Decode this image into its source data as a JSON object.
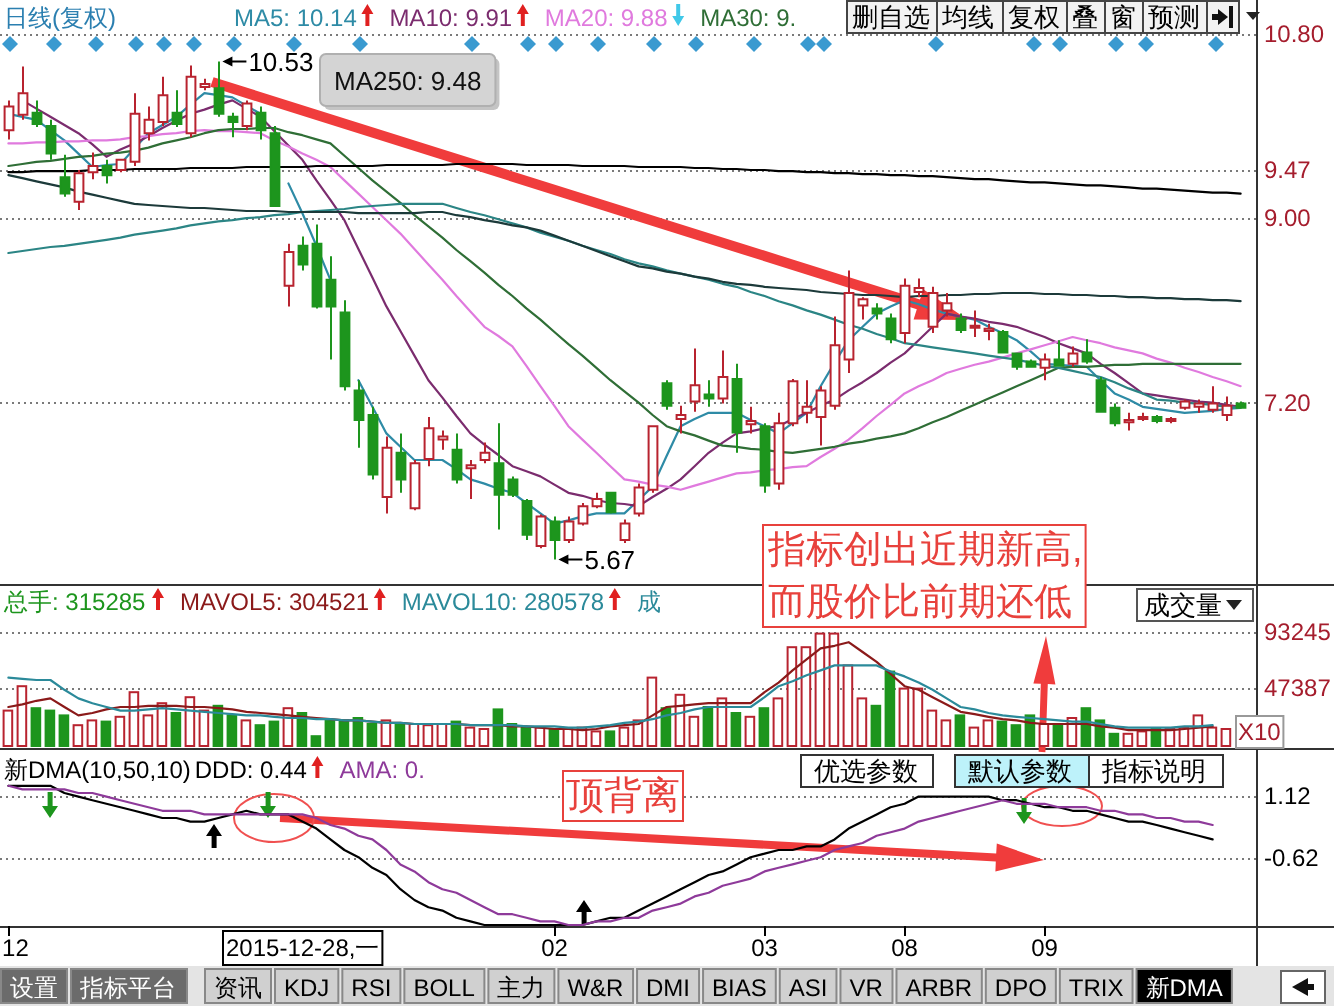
{
  "chart_data": [
    {
      "type": "candlestick",
      "title": "日线(复权)",
      "legend": "top left",
      "tick_labels": "y",
      "grid": "y",
      "categories": [
        null,
        null,
        null,
        null,
        null,
        null,
        null,
        null,
        null,
        null,
        null,
        null,
        null,
        null,
        null,
        null,
        null,
        null,
        null,
        null,
        null,
        null,
        null,
        null,
        null,
        null,
        null,
        null,
        null,
        null,
        null,
        null,
        null,
        null,
        null,
        null,
        null,
        null,
        null,
        null,
        null,
        null,
        null,
        null,
        null,
        null,
        null,
        null,
        null,
        null,
        null,
        null,
        null,
        null,
        null,
        null,
        null,
        null,
        null,
        null,
        null,
        null,
        null,
        null,
        null,
        null,
        null,
        null,
        null,
        null,
        null,
        null,
        null,
        null,
        null,
        null,
        null,
        null,
        null,
        null,
        null,
        null,
        null,
        null,
        null,
        null,
        null,
        null,
        null
      ],
      "ohlc": [
        [
          9.86,
          10.15,
          9.77,
          10.09
        ],
        [
          10.01,
          10.48,
          9.96,
          10.22
        ],
        [
          10.03,
          10.15,
          9.89,
          9.92
        ],
        [
          9.9,
          9.96,
          9.57,
          9.63
        ],
        [
          9.4,
          9.62,
          9.21,
          9.24
        ],
        [
          9.16,
          9.47,
          9.08,
          9.44
        ],
        [
          9.45,
          9.64,
          9.38,
          9.51
        ],
        [
          9.51,
          9.57,
          9.34,
          9.42
        ],
        [
          9.47,
          9.58,
          9.45,
          9.57
        ],
        [
          9.55,
          10.22,
          9.51,
          10.02
        ],
        [
          9.83,
          10.09,
          9.76,
          9.96
        ],
        [
          9.94,
          10.38,
          9.9,
          10.2
        ],
        [
          10.03,
          10.25,
          9.89,
          9.92
        ],
        [
          9.83,
          10.49,
          9.79,
          10.38
        ],
        [
          10.28,
          10.36,
          10.25,
          10.31
        ],
        [
          10.27,
          10.53,
          9.99,
          10.02
        ],
        [
          9.99,
          10.03,
          9.79,
          9.94
        ],
        [
          9.9,
          10.15,
          9.86,
          10.12
        ],
        [
          10.03,
          10.09,
          9.77,
          9.86
        ],
        [
          9.83,
          9.9,
          9.11,
          9.12
        ],
        [
          8.34,
          8.75,
          8.14,
          8.67
        ],
        [
          8.73,
          8.82,
          8.49,
          8.55
        ],
        [
          8.75,
          8.94,
          8.12,
          8.14
        ],
        [
          8.4,
          8.63,
          7.62,
          8.14
        ],
        [
          8.08,
          8.2,
          7.32,
          7.36
        ],
        [
          7.32,
          7.42,
          6.76,
          7.03
        ],
        [
          7.08,
          7.16,
          6.45,
          6.5
        ],
        [
          6.28,
          6.87,
          6.12,
          6.76
        ],
        [
          6.71,
          6.9,
          6.32,
          6.45
        ],
        [
          6.17,
          6.64,
          6.15,
          6.61
        ],
        [
          6.65,
          7.06,
          6.58,
          6.95
        ],
        [
          6.84,
          6.93,
          6.74,
          6.87
        ],
        [
          6.74,
          6.9,
          6.41,
          6.45
        ],
        [
          6.56,
          6.64,
          6.26,
          6.59
        ],
        [
          6.64,
          6.81,
          6.61,
          6.71
        ],
        [
          6.61,
          7.0,
          5.96,
          6.3
        ],
        [
          6.45,
          6.48,
          6.28,
          6.3
        ],
        [
          6.24,
          6.26,
          5.86,
          5.91
        ],
        [
          5.8,
          6.11,
          5.78,
          6.09
        ],
        [
          6.04,
          6.09,
          5.67,
          5.86
        ],
        [
          5.86,
          6.09,
          5.83,
          6.04
        ],
        [
          6.02,
          6.22,
          6.0,
          6.19
        ],
        [
          6.19,
          6.32,
          6.17,
          6.26
        ],
        [
          6.32,
          6.33,
          6.12,
          6.13
        ],
        [
          5.86,
          6.06,
          5.83,
          6.02
        ],
        [
          6.12,
          6.41,
          6.09,
          6.37
        ],
        [
          6.35,
          6.98,
          6.32,
          6.97
        ],
        [
          7.39,
          7.42,
          7.13,
          7.17
        ],
        [
          7.04,
          7.17,
          6.9,
          7.08
        ],
        [
          7.21,
          7.73,
          7.11,
          7.37
        ],
        [
          7.28,
          7.42,
          7.16,
          7.24
        ],
        [
          7.24,
          7.71,
          7.19,
          7.45
        ],
        [
          7.43,
          7.58,
          6.71,
          6.91
        ],
        [
          6.99,
          7.16,
          6.9,
          7.02
        ],
        [
          6.97,
          7.0,
          6.32,
          6.39
        ],
        [
          6.41,
          7.1,
          6.35,
          7.0
        ],
        [
          7.0,
          7.43,
          6.97,
          7.41
        ],
        [
          7.1,
          7.42,
          7.0,
          7.16
        ],
        [
          7.06,
          7.36,
          6.78,
          7.32
        ],
        [
          7.17,
          8.04,
          7.13,
          7.76
        ],
        [
          7.62,
          8.49,
          7.49,
          8.27
        ],
        [
          8.15,
          8.23,
          8.01,
          8.21
        ],
        [
          8.12,
          8.17,
          8.01,
          8.07
        ],
        [
          8.02,
          8.07,
          7.78,
          7.82
        ],
        [
          7.88,
          8.41,
          7.78,
          8.34
        ],
        [
          8.28,
          8.41,
          8.23,
          8.32
        ],
        [
          7.94,
          8.33,
          7.88,
          8.27
        ],
        [
          8.1,
          8.27,
          8.04,
          8.17
        ],
        [
          8.02,
          8.07,
          7.88,
          7.91
        ],
        [
          7.93,
          8.1,
          7.84,
          7.95
        ],
        [
          7.9,
          7.97,
          7.81,
          7.92
        ],
        [
          7.89,
          7.91,
          7.68,
          7.69
        ],
        [
          7.68,
          7.69,
          7.52,
          7.55
        ],
        [
          7.6,
          7.62,
          7.54,
          7.55
        ],
        [
          7.54,
          7.68,
          7.42,
          7.62
        ],
        [
          7.62,
          7.81,
          7.55,
          7.56
        ],
        [
          7.58,
          7.75,
          7.55,
          7.68
        ],
        [
          7.69,
          7.82,
          7.58,
          7.6
        ],
        [
          7.42,
          7.45,
          7.1,
          7.11
        ],
        [
          7.15,
          7.19,
          6.97,
          7.0
        ],
        [
          7.01,
          7.1,
          6.93,
          7.03
        ],
        [
          7.04,
          7.1,
          7.02,
          7.06
        ],
        [
          7.06,
          7.08,
          7.0,
          7.02
        ],
        [
          7.02,
          7.06,
          7.0,
          7.04
        ],
        [
          7.15,
          7.23,
          7.13,
          7.21
        ],
        [
          7.16,
          7.23,
          7.1,
          7.19
        ],
        [
          7.13,
          7.36,
          7.1,
          7.19
        ],
        [
          7.08,
          7.26,
          7.02,
          7.17
        ],
        [
          7.19,
          7.21,
          7.14,
          7.15
        ]
      ],
      "colors": [
        "#b8232f",
        "#b8232f",
        "#1d951d",
        "#1d951d",
        "#1d951d",
        "#b8232f",
        "#b8232f",
        "#1d951d",
        "#b8232f",
        "#b8232f",
        "#b8232f",
        "#b8232f",
        "#1d951d",
        "#b8232f",
        "#b8232f",
        "#1d951d",
        "#1d951d",
        "#b8232f",
        "#1d951d",
        "#1d951d",
        "#b8232f",
        "#1d951d",
        "#1d951d",
        "#1d951d",
        "#1d951d",
        "#1d951d",
        "#1d951d",
        "#b8232f",
        "#1d951d",
        "#b8232f",
        "#b8232f",
        "#b8232f",
        "#1d951d",
        "#b8232f",
        "#b8232f",
        "#1d951d",
        "#1d951d",
        "#1d951d",
        "#b8232f",
        "#1d951d",
        "#b8232f",
        "#b8232f",
        "#b8232f",
        "#1d951d",
        "#b8232f",
        "#b8232f",
        "#b8232f",
        "#1d951d",
        "#b8232f",
        "#b8232f",
        "#1d951d",
        "#b8232f",
        "#1d951d",
        "#b8232f",
        "#1d951d",
        "#b8232f",
        "#b8232f",
        "#b8232f",
        "#b8232f",
        "#b8232f",
        "#b8232f",
        "#b8232f",
        "#1d951d",
        "#1d951d",
        "#b8232f",
        "#b8232f",
        "#b8232f",
        "#b8232f",
        "#1d951d",
        "#b8232f",
        "#b8232f",
        "#1d951d",
        "#1d951d",
        "#1d951d",
        "#b8232f",
        "#1d951d",
        "#b8232f",
        "#1d951d",
        "#1d951d",
        "#1d951d",
        "#b8232f",
        "#b8232f",
        "#1d951d",
        "#b8232f",
        "#b8232f",
        "#b8232f",
        "#b8232f",
        "#b8232f",
        "#1d951d"
      ],
      "series": [
        {
          "name": "MA5: 10.14",
          "type": "line",
          "color": "#2e8ba6",
          "values": [
            10.02,
            9.99,
            9.96,
            9.86,
            9.76,
            9.63,
            9.5,
            9.52,
            9.53,
            9.68,
            9.83,
            9.91,
            9.99,
            10.11,
            10.22,
            10.2,
            10.18,
            10.1,
            10.02,
            null,
            9.34,
            9.05,
            8.73,
            8.4,
            null,
            7.42,
            7.16,
            6.9,
            6.77,
            6.64,
            6.64,
            6.64,
            6.55,
            6.45,
            6.41,
            6.36,
            6.32,
            6.22,
            6.12,
            6.02,
            6.05,
            6.09,
            6.12,
            6.12,
            6.12,
            6.25,
            6.38,
            6.68,
            6.97,
            7.04,
            7.1,
            7.1,
            7.1,
            7.03,
            6.97,
            6.9,
            7.0,
            7.1,
            7.36,
            7.59,
            7.81,
            7.94,
            8.07,
            8.14,
            8.2,
            8.16,
            8.11,
            8.07,
            8.04,
            8.01,
            7.94,
            7.88,
            7.81,
            7.7,
            7.58,
            7.57,
            7.56,
            7.55,
            7.42,
            7.29,
            7.23,
            7.16,
            7.14,
            7.12,
            7.1,
            7.11,
            7.12,
            7.14,
            7.15
          ]
        },
        {
          "name": "MA10: 9.91",
          "type": "line",
          "color": "#7b2c6e",
          "values": [
            null,
            10.15,
            10.07,
            9.99,
            9.91,
            9.83,
            9.72,
            9.6,
            9.67,
            9.73,
            9.8,
            9.88,
            9.95,
            10.02,
            10.06,
            10.11,
            10.15,
            10.07,
            9.99,
            9.85,
            9.71,
            9.57,
            9.37,
            9.18,
            8.98,
            8.7,
            8.42,
            8.14,
            7.9,
            7.66,
            7.42,
            7.25,
            7.07,
            6.9,
            6.79,
            6.69,
            6.58,
            6.53,
            6.48,
            6.4,
            6.32,
            6.29,
            6.25,
            6.22,
            6.21,
            6.19,
            6.28,
            6.36,
            6.45,
            6.58,
            6.71,
            6.81,
            6.9,
            6.92,
            6.95,
            6.97,
            7.04,
            7.1,
            7.17,
            7.23,
            7.32,
            7.4,
            7.49,
            7.59,
            7.68,
            7.81,
            7.94,
            8.07,
            8.04,
            8.02,
            7.99,
            7.97,
            7.94,
            7.89,
            7.84,
            7.78,
            7.73,
            7.68,
            7.58,
            7.49,
            7.39,
            7.29,
            7.27,
            7.25,
            7.23,
            7.21,
            7.2,
            7.18,
            7.16
          ]
        },
        {
          "name": "MA20: 9.88",
          "type": "line",
          "color": "#e07ade",
          "values": [
            9.73,
            9.73,
            9.74,
            9.74,
            9.75,
            9.75,
            9.76,
            9.76,
            9.77,
            9.79,
            9.8,
            9.82,
            9.83,
            9.85,
            9.86,
            9.85,
            9.85,
            9.84,
            9.83,
            9.76,
            9.7,
            9.63,
            9.57,
            9.5,
            9.37,
            9.24,
            9.11,
            8.98,
            8.85,
            8.7,
            8.55,
            8.4,
            8.24,
            8.09,
            7.94,
            7.85,
            7.75,
            7.56,
            7.36,
            7.17,
            6.97,
            6.84,
            6.71,
            6.58,
            6.45,
            6.43,
            6.4,
            6.38,
            6.35,
            6.39,
            6.43,
            6.47,
            6.51,
            6.52,
            6.54,
            6.55,
            6.57,
            6.58,
            6.67,
            6.75,
            6.84,
            6.95,
            7.07,
            7.18,
            7.29,
            7.36,
            7.42,
            7.49,
            7.53,
            7.57,
            7.6,
            7.64,
            7.68,
            7.72,
            7.76,
            7.8,
            7.84,
            7.81,
            7.78,
            7.74,
            7.71,
            7.68,
            7.63,
            7.59,
            7.54,
            7.5,
            7.45,
            7.41,
            7.36
          ]
        },
        {
          "name": "MA30: 9.",
          "type": "line",
          "color": "#2f6e36",
          "values": [
            9.51,
            9.53,
            9.55,
            9.56,
            9.58,
            9.6,
            9.61,
            9.63,
            9.64,
            9.66,
            9.69,
            9.73,
            9.76,
            9.79,
            9.83,
            9.86,
            9.87,
            9.87,
            9.88,
            9.88,
            9.84,
            9.81,
            9.77,
            9.73,
            9.61,
            9.49,
            9.37,
            9.26,
            9.15,
            9.03,
            8.92,
            8.81,
            8.69,
            8.58,
            8.47,
            8.35,
            8.24,
            8.12,
            8.01,
            7.89,
            7.77,
            7.66,
            7.54,
            7.42,
            7.31,
            7.2,
            7.08,
            6.97,
            6.92,
            6.88,
            6.83,
            6.78,
            6.77,
            6.75,
            6.74,
            6.72,
            6.71,
            6.73,
            6.75,
            6.77,
            6.8,
            6.82,
            6.85,
            6.87,
            6.9,
            6.95,
            7.01,
            7.06,
            7.12,
            7.18,
            7.24,
            7.3,
            7.36,
            7.42,
            7.48,
            7.54,
            7.55,
            7.55,
            7.56,
            7.57,
            7.57,
            7.58,
            7.58,
            7.58,
            7.58,
            7.58,
            7.58,
            7.58,
            7.58
          ]
        },
        {
          "type": "line",
          "color": "#2b8585",
          "values": [
            8.66,
            8.68,
            8.7,
            8.72,
            8.73,
            8.75,
            8.77,
            8.79,
            8.81,
            8.84,
            8.86,
            8.88,
            8.9,
            8.93,
            8.95,
            8.97,
            8.98,
            9.0,
            9.01,
            9.03,
            9.04,
            9.06,
            9.07,
            9.08,
            9.09,
            9.11,
            9.12,
            9.13,
            9.14,
            9.14,
            9.14,
            9.14,
            9.1,
            9.06,
            9.03,
            8.99,
            8.95,
            8.91,
            8.86,
            8.82,
            8.78,
            8.73,
            8.69,
            8.65,
            8.6,
            8.56,
            8.53,
            8.49,
            8.46,
            8.43,
            8.4,
            8.36,
            8.33,
            8.28,
            8.24,
            8.19,
            8.15,
            8.1,
            8.06,
            8.01,
            7.96,
            7.92,
            7.87,
            7.83,
            7.78,
            7.76,
            7.74,
            7.72,
            7.7,
            7.68,
            7.66,
            7.64,
            7.62,
            7.59,
            7.56,
            7.54,
            7.51,
            7.48,
            7.45,
            7.4,
            7.34,
            7.29,
            7.23,
            7.22,
            7.2,
            7.19,
            7.18,
            7.16,
            7.15
          ]
        },
        {
          "type": "line",
          "color": "#1c3a3a",
          "values": [
            9.42,
            9.39,
            9.36,
            9.33,
            9.3,
            9.26,
            9.23,
            9.2,
            9.17,
            9.14,
            9.13,
            9.12,
            9.11,
            9.1,
            9.1,
            9.09,
            9.08,
            9.07,
            9.07,
            9.07,
            9.06,
            9.06,
            9.06,
            9.06,
            9.06,
            9.05,
            9.05,
            9.05,
            9.05,
            9.05,
            9.06,
            9.06,
            9.03,
            9.01,
            8.98,
            8.96,
            8.93,
            8.91,
            8.88,
            8.83,
            8.78,
            8.73,
            8.68,
            8.63,
            8.58,
            8.53,
            8.51,
            8.48,
            8.46,
            8.43,
            8.41,
            8.38,
            8.36,
            8.35,
            8.33,
            8.32,
            8.31,
            8.3,
            8.28,
            8.27,
            8.26,
            8.25,
            8.25,
            8.24,
            8.23,
            8.24,
            8.24,
            8.25,
            8.25,
            8.26,
            8.26,
            8.27,
            8.27,
            8.27,
            8.26,
            8.26,
            8.25,
            8.25,
            8.24,
            8.24,
            8.23,
            8.23,
            8.22,
            8.22,
            8.21,
            8.21,
            8.2,
            8.2,
            8.19
          ]
        },
        {
          "type": "line",
          "color": "#000000",
          "values": [
            9.45,
            9.45,
            9.46,
            9.46,
            9.46,
            9.46,
            9.47,
            9.47,
            9.47,
            9.48,
            9.48,
            9.48,
            9.48,
            9.49,
            9.49,
            9.49,
            9.49,
            9.5,
            9.5,
            9.5,
            9.5,
            9.5,
            9.51,
            9.51,
            9.51,
            9.51,
            9.51,
            9.52,
            9.52,
            9.52,
            9.52,
            9.52,
            9.53,
            9.53,
            9.53,
            9.53,
            9.53,
            9.52,
            9.52,
            9.52,
            9.52,
            9.51,
            9.51,
            9.51,
            9.51,
            9.5,
            9.5,
            9.5,
            9.5,
            9.49,
            9.49,
            9.48,
            9.48,
            9.47,
            9.47,
            9.46,
            9.46,
            9.45,
            9.45,
            9.44,
            9.44,
            9.43,
            9.43,
            9.42,
            9.42,
            9.41,
            9.41,
            9.4,
            9.39,
            9.38,
            9.38,
            9.37,
            9.36,
            9.35,
            9.35,
            9.34,
            9.33,
            9.32,
            9.32,
            9.31,
            9.3,
            9.29,
            9.29,
            9.28,
            9.27,
            9.26,
            9.25,
            9.25,
            9.24
          ]
        }
      ],
      "ylim": [
        5.43,
        11.13
      ],
      "yticks": [
        {
          "value": 10.8,
          "label": "10.80"
        },
        9.47,
        {
          "value": 9,
          "label": "9.00"
        },
        {
          "value": 7.2,
          "label": "7.20"
        }
      ],
      "annotations": [
        "10.53",
        "5.67",
        "MA250: 9.48",
        "指标创出近期新高,\n而股价比前期还低",
        "删自选",
        "均线",
        "复权",
        "叠",
        "窗",
        "预测"
      ]
    },
    {
      "type": "bar",
      "legend": "top left",
      "tick_labels": "y",
      "grid": "y",
      "categories": [
        null,
        null,
        null,
        null,
        null,
        null,
        null,
        null,
        null,
        null,
        null,
        null,
        null,
        null,
        null,
        null,
        null,
        null,
        null,
        null,
        null,
        null,
        null,
        null,
        null,
        null,
        null,
        null,
        null,
        null,
        null,
        null,
        null,
        null,
        null,
        null,
        null,
        null,
        null,
        null,
        null,
        null,
        null,
        null,
        null,
        null,
        null,
        null,
        null,
        null,
        null,
        null,
        null,
        null,
        null,
        null,
        null,
        null,
        null,
        null,
        null,
        null,
        null,
        null,
        null,
        null,
        null,
        null,
        null,
        null,
        null,
        null,
        null,
        null,
        null,
        null,
        null,
        null,
        null,
        null,
        null,
        null,
        null,
        null,
        null,
        null,
        null,
        null,
        null
      ],
      "series": [
        {
          "name": "总手: 315285",
          "type": "bar",
          "color": "#1d951d",
          "colors": [
            "#b8232f",
            "#b8232f",
            "#1d951d",
            "#1d951d",
            "#1d951d",
            "#b8232f",
            "#b8232f",
            "#1d951d",
            "#b8232f",
            "#b8232f",
            "#b8232f",
            "#b8232f",
            "#1d951d",
            "#b8232f",
            "#b8232f",
            "#1d951d",
            "#1d951d",
            "#b8232f",
            "#1d951d",
            "#1d951d",
            "#b8232f",
            "#1d951d",
            "#1d951d",
            "#1d951d",
            "#1d951d",
            "#1d951d",
            "#1d951d",
            "#b8232f",
            "#1d951d",
            "#b8232f",
            "#b8232f",
            "#b8232f",
            "#1d951d",
            "#b8232f",
            "#b8232f",
            "#1d951d",
            "#1d951d",
            "#1d951d",
            "#b8232f",
            "#1d951d",
            "#b8232f",
            "#b8232f",
            "#b8232f",
            "#1d951d",
            "#b8232f",
            "#b8232f",
            "#b8232f",
            "#1d951d",
            "#b8232f",
            "#b8232f",
            "#1d951d",
            "#b8232f",
            "#1d951d",
            "#b8232f",
            "#1d951d",
            "#b8232f",
            "#b8232f",
            "#b8232f",
            "#b8232f",
            "#b8232f",
            "#b8232f",
            "#b8232f",
            "#1d951d",
            "#1d951d",
            "#b8232f",
            "#b8232f",
            "#b8232f",
            "#b8232f",
            "#1d951d",
            "#b8232f",
            "#b8232f",
            "#1d951d",
            "#1d951d",
            "#1d951d",
            "#b8232f",
            "#1d951d",
            "#b8232f",
            "#1d951d",
            "#1d951d",
            "#1d951d",
            "#b8232f",
            "#b8232f",
            "#1d951d",
            "#b8232f",
            "#b8232f",
            "#b8232f",
            "#b8232f",
            "#b8232f",
            null
          ],
          "values": [
            29000,
            49000,
            31000,
            29000,
            25000,
            17000,
            21000,
            20000,
            24000,
            44000,
            25000,
            35000,
            27000,
            40000,
            29000,
            33000,
            25000,
            21000,
            17000,
            20000,
            31000,
            27000,
            8000,
            21000,
            21000,
            23000,
            18000,
            21000,
            18000,
            18000,
            17000,
            18000,
            20000,
            15000,
            14000,
            30000,
            18000,
            15000,
            15000,
            14000,
            14000,
            15000,
            12000,
            12000,
            15000,
            21000,
            56000,
            31000,
            42000,
            24000,
            32000,
            39000,
            27000,
            24000,
            31000,
            39000,
            81000,
            81000,
            92000,
            92000,
            66000,
            39000,
            33000,
            61000,
            47000,
            47000,
            29000,
            21000,
            25000,
            15000,
            21000,
            20000,
            17000,
            25000,
            18000,
            17000,
            23000,
            31000,
            21000,
            10000,
            10000,
            12000,
            14000,
            14000,
            15000,
            25000,
            15000,
            14000,
            null
          ]
        },
        {
          "name": "MAVOL5: 304521",
          "type": "line",
          "color": "#8b1a1a",
          "values": [
            32000,
            34000,
            37000,
            39000,
            32000,
            25000,
            27000,
            30000,
            32000,
            32000,
            33000,
            33000,
            33000,
            32000,
            32000,
            31000,
            30000,
            28000,
            27000,
            26000,
            25000,
            24000,
            23000,
            22000,
            21000,
            21000,
            20000,
            19000,
            19000,
            18000,
            18000,
            18000,
            18000,
            17000,
            17000,
            17000,
            16000,
            16000,
            15000,
            14000,
            14000,
            13000,
            14000,
            16000,
            17000,
            18000,
            25000,
            32000,
            33000,
            34000,
            35000,
            35000,
            35000,
            35000,
            44000,
            52000,
            62000,
            71000,
            80000,
            82000,
            85000,
            77000,
            69000,
            59000,
            49000,
            46000,
            40000,
            34000,
            28000,
            26000,
            24000,
            22000,
            21000,
            19000,
            18000,
            18000,
            18000,
            18000,
            16000,
            15000,
            13000,
            13000,
            13000,
            13000,
            14000,
            15000,
            16000,
            null,
            null
          ]
        },
        {
          "name": "MAVOL10: 280578",
          "type": "line",
          "color": "#2b8a9a",
          "values": [
            56000,
            55000,
            54000,
            54000,
            46000,
            39000,
            35000,
            32000,
            29000,
            29000,
            30000,
            31000,
            30000,
            29000,
            28000,
            27000,
            26000,
            25000,
            25000,
            24000,
            23000,
            23000,
            22000,
            22000,
            21000,
            21000,
            20000,
            19000,
            19000,
            18000,
            18000,
            18000,
            18000,
            17000,
            17000,
            17000,
            17000,
            16000,
            16000,
            16000,
            15000,
            15000,
            16000,
            17000,
            19000,
            20000,
            22000,
            25000,
            27000,
            30000,
            32000,
            32000,
            32000,
            32000,
            40000,
            49000,
            53000,
            58000,
            62000,
            66000,
            66000,
            66000,
            66000,
            61000,
            57000,
            52000,
            46000,
            39000,
            32000,
            30000,
            27000,
            25000,
            24000,
            23000,
            22000,
            21000,
            20000,
            20000,
            18000,
            16000,
            15000,
            15000,
            15000,
            15000,
            16000,
            16000,
            17000,
            null,
            null
          ]
        }
      ],
      "ylim": [
        0,
        132700
      ],
      "yticks": [
        93245,
        47387
      ],
      "annotations": [
        "成",
        "成交量",
        "X10"
      ]
    },
    {
      "type": "line",
      "title": "新DMA(10,50,10)",
      "legend": "top left",
      "grid": "y",
      "categories": [
        "12",
        null,
        null,
        null,
        null,
        null,
        null,
        null,
        null,
        null,
        null,
        null,
        null,
        null,
        null,
        null,
        null,
        null,
        null,
        null,
        null,
        null,
        null,
        null,
        null,
        null,
        null,
        null,
        null,
        null,
        null,
        null,
        null,
        null,
        null,
        null,
        null,
        null,
        null,
        "02",
        null,
        null,
        null,
        null,
        null,
        null,
        null,
        null,
        null,
        null,
        null,
        null,
        null,
        null,
        "03",
        null,
        null,
        null,
        null,
        null,
        null,
        null,
        null,
        null,
        "08",
        null,
        null,
        null,
        null,
        null,
        null,
        null,
        null,
        null,
        "09",
        null,
        null,
        null,
        null,
        null,
        null,
        null,
        null,
        null,
        null,
        null,
        null,
        null,
        null
      ],
      "series": [
        {
          "name": "DDD: 0.44",
          "type": "line",
          "color": "#000000",
          "values": [
            1.4,
            1.4,
            1.4,
            1.4,
            1.2,
            1.1,
            1.0,
            0.9,
            0.8,
            0.7,
            0.6,
            0.5,
            0.5,
            0.4,
            0.4,
            0.5,
            0.6,
            0.7,
            0.6,
            0.6,
            0.6,
            0.4,
            0.2,
            -0.1,
            -0.4,
            -0.6,
            -0.9,
            -1.1,
            -1.5,
            -1.8,
            -2.0,
            -2.1,
            -2.3,
            -2.4,
            -2.5,
            -2.5,
            -2.5,
            -2.5,
            -2.5,
            -2.5,
            -2.5,
            -2.5,
            -2.4,
            -2.3,
            -2.3,
            -2.1,
            -1.9,
            -1.7,
            -1.5,
            -1.3,
            -1.1,
            -1.0,
            -0.8,
            -0.6,
            -0.5,
            -0.4,
            -0.4,
            -0.3,
            -0.3,
            -0.1,
            0.2,
            0.4,
            0.6,
            0.8,
            0.9,
            1.1,
            1.1,
            1.1,
            1.1,
            1.1,
            1.1,
            1.0,
            1.0,
            0.9,
            0.8,
            0.8,
            0.7,
            0.7,
            0.6,
            0.5,
            0.4,
            0.4,
            0.3,
            0.2,
            0.1,
            0.0,
            -0.1,
            null,
            null
          ]
        },
        {
          "name": "AMA: 0.",
          "type": "line",
          "color": "#8e3a9a",
          "values": [
            1.4,
            1.3,
            1.3,
            1.3,
            1.3,
            1.2,
            1.2,
            1.1,
            1.0,
            0.9,
            0.8,
            0.7,
            0.7,
            0.7,
            0.6,
            0.6,
            0.6,
            0.6,
            0.6,
            0.6,
            0.6,
            0.6,
            0.5,
            0.3,
            0.2,
            0.0,
            -0.1,
            -0.4,
            -0.8,
            -1.0,
            -1.3,
            -1.5,
            -1.6,
            -1.8,
            -2.0,
            -2.2,
            -2.2,
            -2.3,
            -2.4,
            -2.4,
            -2.5,
            -2.5,
            -2.4,
            -2.4,
            -2.3,
            -2.3,
            -2.1,
            -2.0,
            -1.9,
            -1.7,
            -1.6,
            -1.4,
            -1.3,
            -1.2,
            -1.0,
            -0.9,
            -0.8,
            -0.7,
            -0.6,
            -0.4,
            -0.3,
            -0.2,
            0.0,
            0.1,
            0.2,
            0.4,
            0.5,
            0.6,
            0.7,
            0.8,
            0.9,
            1.0,
            0.9,
            0.9,
            0.9,
            0.8,
            0.8,
            0.8,
            0.7,
            0.7,
            0.6,
            0.6,
            0.5,
            0.5,
            0.4,
            0.4,
            0.3,
            null,
            null
          ]
        }
      ],
      "ylim": [
        -2.53,
        2.35
      ],
      "yticks": [
        1.12,
        -0.62
      ],
      "annotations": [
        "优选参数",
        "默认参数",
        "指标说明",
        "顶背离",
        "2015-12-28,一",
        "设置",
        "指标平台",
        "资讯",
        "KDJ",
        "RSI",
        "BOLL",
        "主力",
        "W&R",
        "DMI",
        "BIAS",
        "ASI",
        "VR",
        "ARBR",
        "DPO",
        "TRIX",
        "新DMA"
      ]
    }
  ]
}
